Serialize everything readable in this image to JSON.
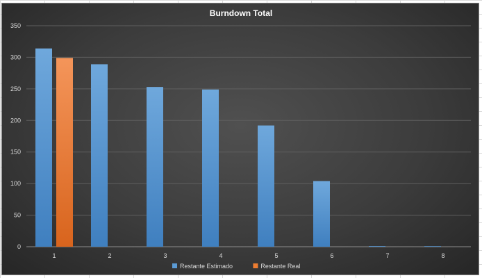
{
  "chart_data": {
    "type": "bar",
    "title": "Burndown Total",
    "xlabel": "",
    "ylabel": "",
    "categories": [
      "1",
      "2",
      "3",
      "4",
      "5",
      "6",
      "7",
      "8"
    ],
    "ylim": [
      0,
      350
    ],
    "yticks": [
      0,
      50,
      100,
      150,
      200,
      250,
      300,
      350
    ],
    "grid": true,
    "legend_position": "bottom",
    "series": [
      {
        "name": "Restante Estimado",
        "color": "#5b9bd5",
        "values": [
          314,
          289,
          253,
          249,
          192,
          104,
          1,
          0
        ]
      },
      {
        "name": "Restante Real",
        "color": "#ed7d31",
        "values": [
          299,
          null,
          null,
          null,
          null,
          null,
          null,
          null
        ]
      }
    ]
  }
}
